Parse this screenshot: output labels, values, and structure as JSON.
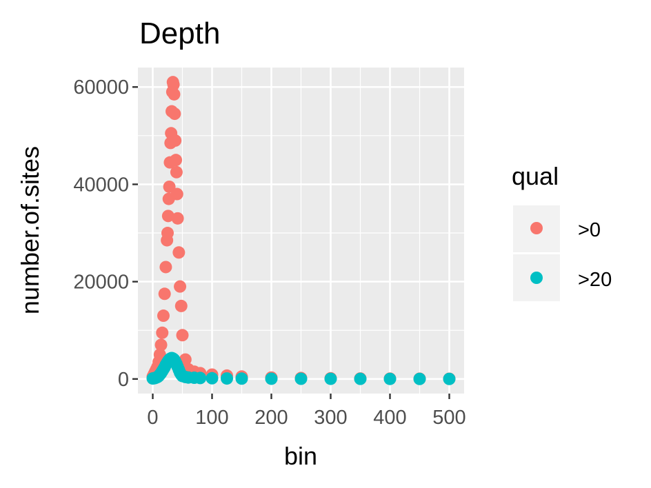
{
  "chart_data": {
    "type": "scatter",
    "title": "Depth",
    "xlabel": "bin",
    "ylabel": "number.of.sites",
    "xlim": [
      -25,
      525
    ],
    "ylim": [
      -3000,
      64000
    ],
    "xticks": [
      0,
      100,
      200,
      300,
      400,
      500
    ],
    "yticks": [
      0,
      20000,
      40000,
      60000
    ],
    "grid": true,
    "legend": {
      "title": "qual",
      "position": "right"
    },
    "series": [
      {
        "name": ">0",
        "color": "#F8766D",
        "x": [
          0,
          2,
          4,
          6,
          8,
          10,
          12,
          14,
          16,
          18,
          20,
          22,
          24,
          25,
          26,
          27,
          28,
          29,
          30,
          31,
          32,
          33,
          34,
          35,
          36,
          37,
          38,
          39,
          40,
          41,
          42,
          44,
          46,
          48,
          50,
          55,
          60,
          70,
          80,
          100,
          125,
          150,
          200,
          250,
          300,
          350,
          400,
          450,
          500
        ],
        "y": [
          500,
          1000,
          1500,
          2000,
          2500,
          3500,
          5000,
          7000,
          9500,
          13000,
          17500,
          23000,
          28500,
          30000,
          33500,
          37000,
          39500,
          44500,
          48500,
          50500,
          55000,
          59000,
          61000,
          60500,
          58500,
          54500,
          49000,
          45000,
          42500,
          38000,
          33000,
          26000,
          19000,
          15000,
          9000,
          4000,
          2000,
          1500,
          1200,
          900,
          700,
          500,
          300,
          200,
          150,
          100,
          80,
          60,
          50
        ]
      },
      {
        "name": ">20",
        "color": "#00BFC4",
        "x": [
          0,
          2,
          4,
          6,
          8,
          10,
          12,
          14,
          16,
          18,
          20,
          22,
          24,
          26,
          28,
          30,
          32,
          34,
          36,
          38,
          40,
          42,
          44,
          46,
          48,
          50,
          55,
          60,
          70,
          80,
          100,
          125,
          150,
          200,
          250,
          300,
          350,
          400,
          450,
          500
        ],
        "y": [
          100,
          150,
          200,
          300,
          400,
          600,
          900,
          1200,
          1600,
          2000,
          2400,
          2900,
          3300,
          3700,
          4000,
          4200,
          4300,
          4200,
          4000,
          3600,
          3100,
          2500,
          1900,
          1300,
          900,
          600,
          400,
          300,
          250,
          200,
          150,
          100,
          80,
          50,
          40,
          30,
          20,
          15,
          10,
          10
        ]
      }
    ]
  }
}
